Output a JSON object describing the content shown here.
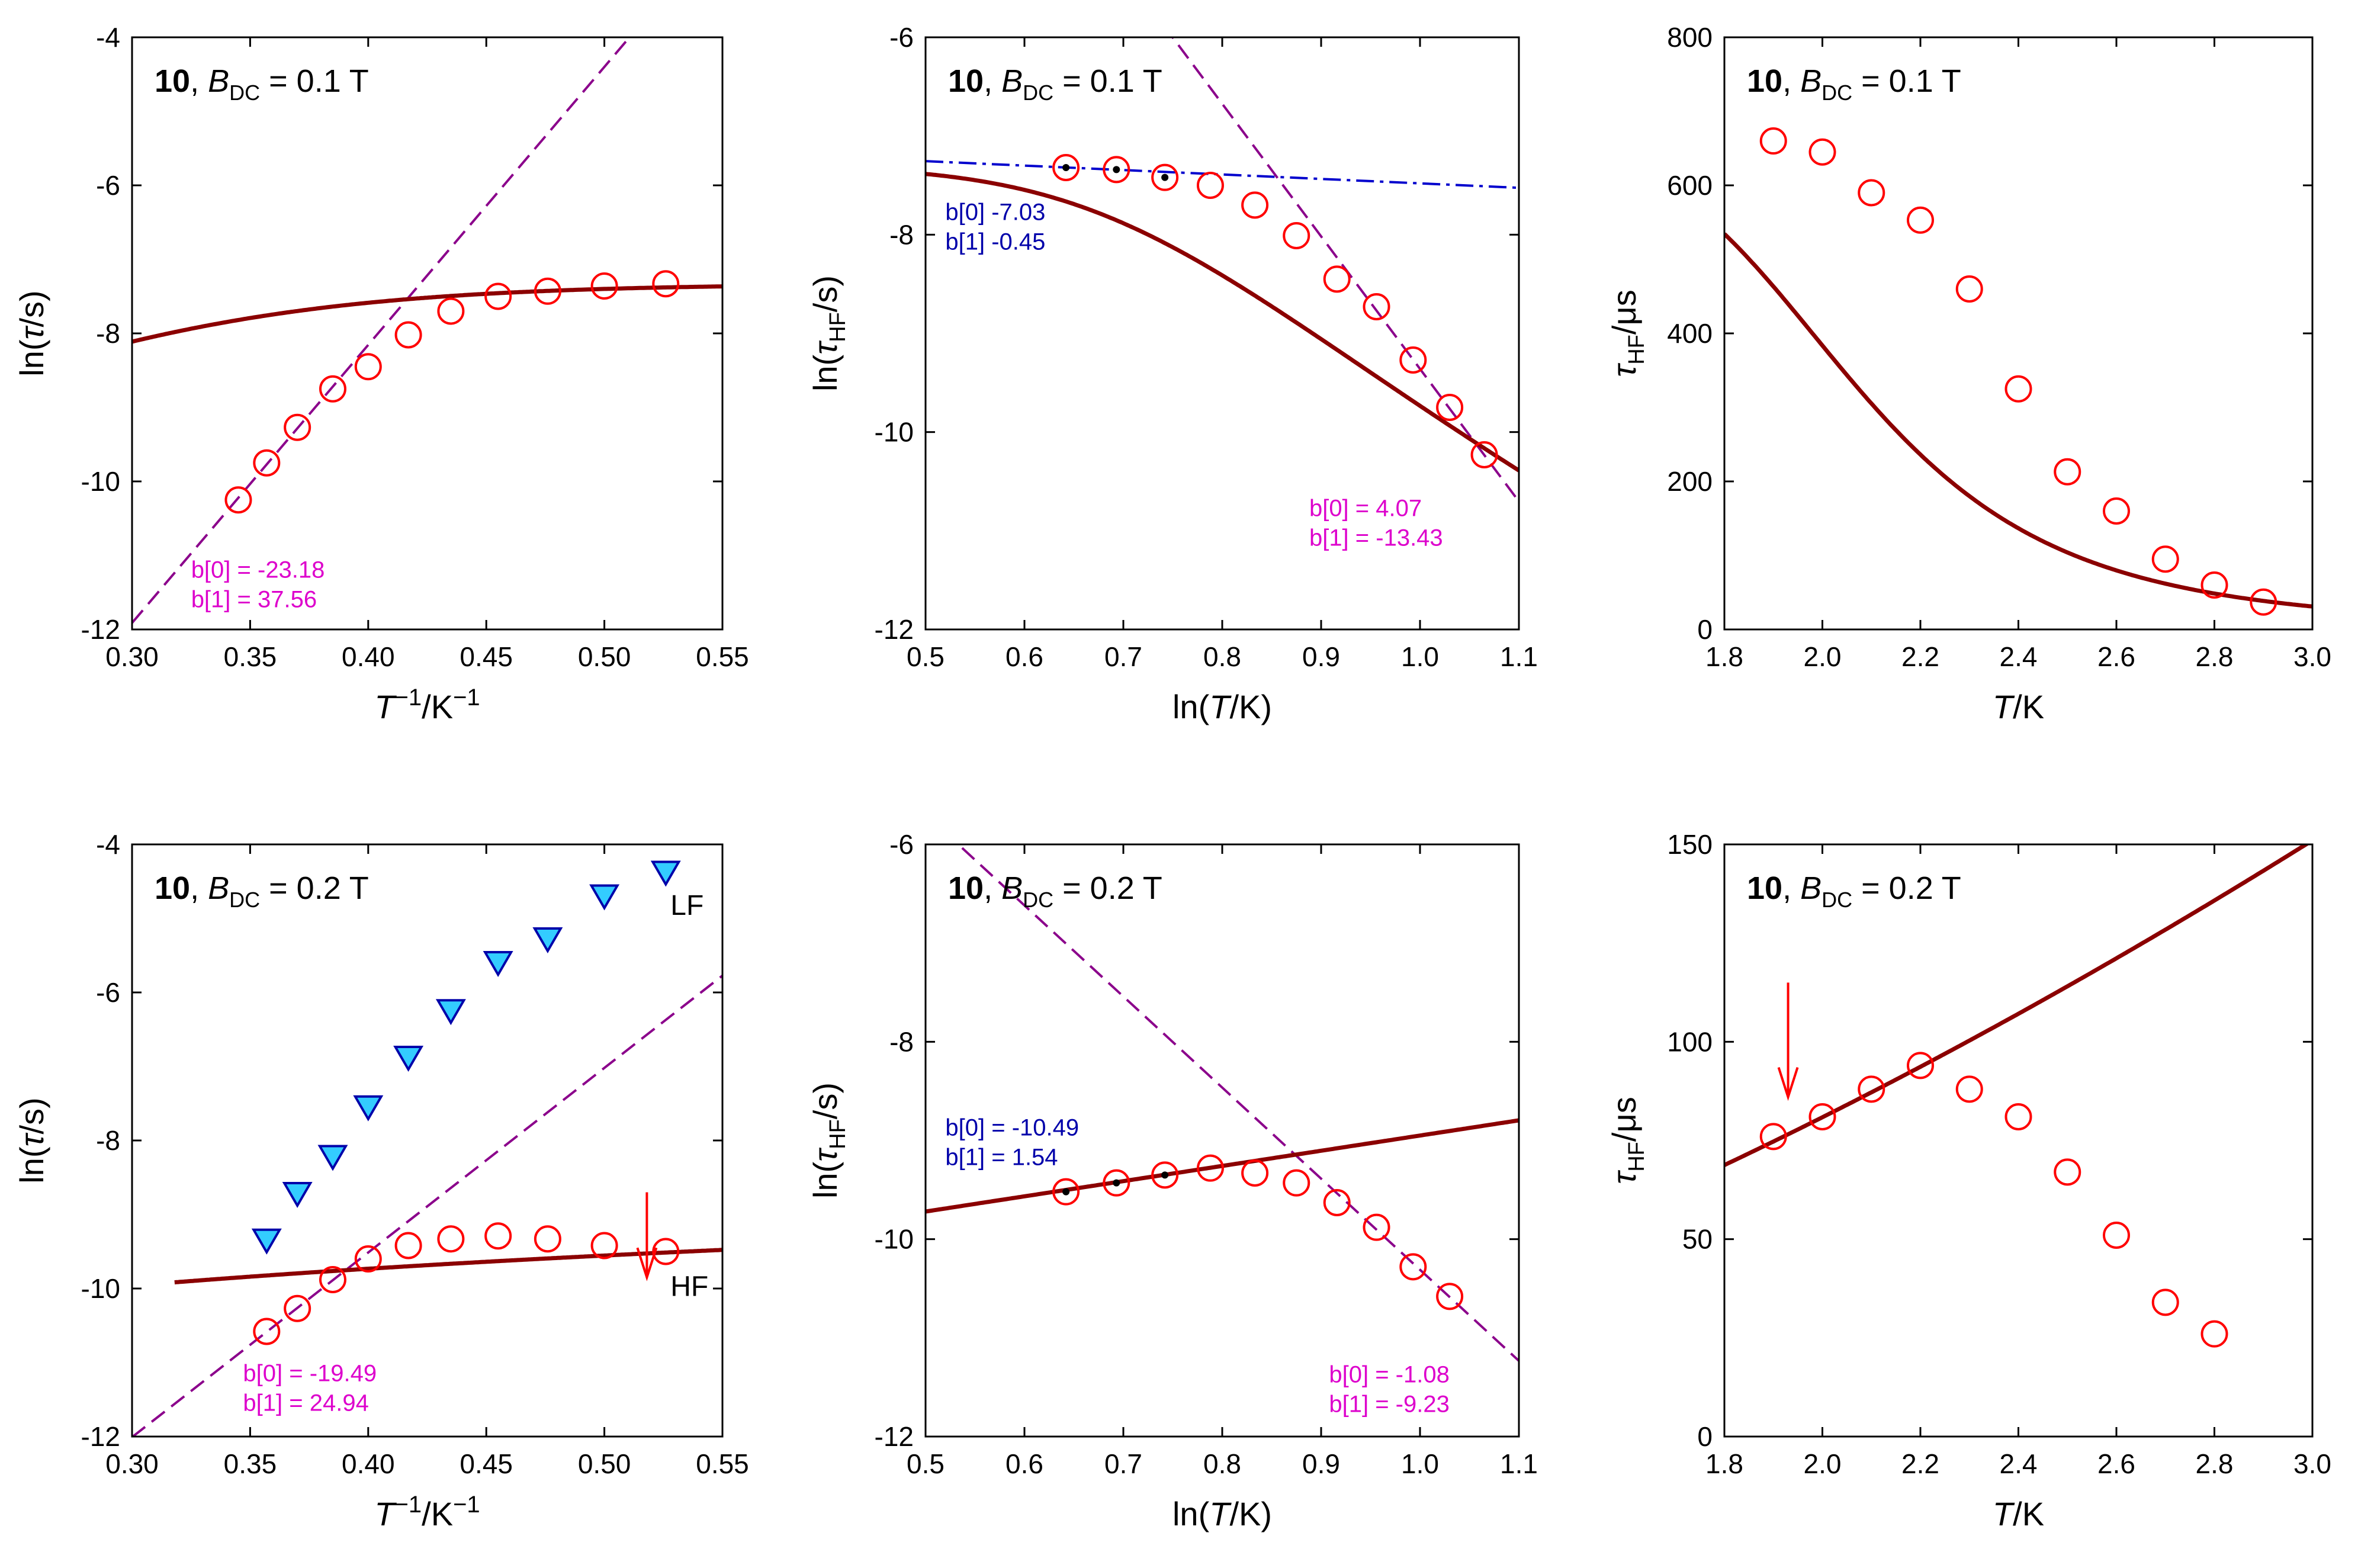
{
  "colors": {
    "data": "#ff0000",
    "fit": "#8b0000",
    "dashed": "#8b008b",
    "dashdot": "#0000cd",
    "annot_magenta": "#dd00cc",
    "annot_blue": "#0000aa",
    "lf_fill": "#33ccff",
    "lf_edge": "#0000aa",
    "arrow": "#ff0000"
  },
  "chart_data": [
    {
      "id": "p1",
      "type": "scatter",
      "title_num": "10",
      "title_mid": ", ",
      "title_b": "B",
      "title_sub": "DC",
      "title_rest": " = 0.1 T",
      "xlabel": "T⁻¹/K⁻¹",
      "ylabel": "ln(τ/s)",
      "xlim": [
        0.3,
        0.55
      ],
      "ylim": [
        -12,
        -4
      ],
      "xticks": [
        0.3,
        0.35,
        0.4,
        0.45,
        0.5,
        0.55
      ],
      "xtick_labels": [
        "0.30",
        "0.35",
        "0.40",
        "0.45",
        "0.50",
        "0.55"
      ],
      "yticks": [
        -12,
        -10,
        -8,
        -6,
        -4
      ],
      "ytick_labels": [
        "-12",
        "-10",
        "-8",
        "-6",
        "-4"
      ],
      "points": [
        [
          0.345,
          -10.25
        ],
        [
          0.357,
          -9.75
        ],
        [
          0.37,
          -9.27
        ],
        [
          0.385,
          -8.75
        ],
        [
          0.4,
          -8.45
        ],
        [
          0.417,
          -8.02
        ],
        [
          0.435,
          -7.7
        ],
        [
          0.455,
          -7.5
        ],
        [
          0.476,
          -7.43
        ],
        [
          0.5,
          -7.36
        ],
        [
          0.526,
          -7.33
        ]
      ],
      "fit_type": "sigmoid_inv",
      "fit_params": {
        "base": -7.33,
        "bmax": -3.3,
        "A": -23.18,
        "B": 37.56,
        "x0": 0.3,
        "x1": 0.55
      },
      "dashed": {
        "b0": -23.18,
        "b1": 37.56
      },
      "annotations": [
        {
          "lines": [
            "b[0] = -23.18",
            "b[1] = 37.56"
          ],
          "x": 0.325,
          "y": -11.3,
          "color": "magenta"
        }
      ]
    },
    {
      "id": "p2",
      "type": "scatter",
      "title_num": "10",
      "title_mid": ", ",
      "title_b": "B",
      "title_sub": "DC",
      "title_rest": " = 0.1 T",
      "xlabel": "ln(T/K)",
      "ylabel": "ln(τHF/s)",
      "xlim": [
        0.5,
        1.1
      ],
      "ylim": [
        -12,
        -6
      ],
      "xticks": [
        0.5,
        0.6,
        0.7,
        0.8,
        0.9,
        1.0,
        1.1
      ],
      "xtick_labels": [
        "0.5",
        "0.6",
        "0.7",
        "0.8",
        "0.9",
        "1.0",
        "1.1"
      ],
      "yticks": [
        -12,
        -10,
        -8,
        -6
      ],
      "ytick_labels": [
        "-12",
        "-10",
        "-8",
        "-6"
      ],
      "points": [
        [
          0.642,
          -7.32
        ],
        [
          0.693,
          -7.34
        ],
        [
          0.742,
          -7.42
        ],
        [
          0.788,
          -7.5
        ],
        [
          0.833,
          -7.7
        ],
        [
          0.875,
          -8.01
        ],
        [
          0.916,
          -8.45
        ],
        [
          0.956,
          -8.73
        ],
        [
          0.993,
          -9.27
        ],
        [
          1.03,
          -9.75
        ],
        [
          1.065,
          -10.23
        ]
      ],
      "fit_type": "tau_T",
      "fit_params": {
        "tqtm": -6.42,
        "C": -4.53,
        "n": 1.0,
        "U": 42.0,
        "t0": -15.5,
        "x0": 0.5,
        "x1": 1.1
      },
      "dashed": {
        "b0": 4.07,
        "b1": -13.43
      },
      "dashdot": {
        "b0": -7.03,
        "b1": -0.45
      },
      "annotations": [
        {
          "lines": [
            "b[0]  -7.03",
            "b[1]  -0.45"
          ],
          "x": 0.52,
          "y": -7.85,
          "color": "blue"
        },
        {
          "lines": [
            "b[0] = 4.07",
            "b[1] = -13.43"
          ],
          "x": 0.888,
          "y": -10.85,
          "color": "magenta"
        }
      ]
    },
    {
      "id": "p3",
      "type": "scatter",
      "title_num": "10",
      "title_mid": ", ",
      "title_b": "B",
      "title_sub": "DC",
      "title_rest": " = 0.1 T",
      "xlabel": "T/K",
      "ylabel": "τHF/μs",
      "xlim": [
        1.8,
        3.0
      ],
      "ylim": [
        0,
        800
      ],
      "xticks": [
        1.8,
        2.0,
        2.2,
        2.4,
        2.6,
        2.8,
        3.0
      ],
      "xtick_labels": [
        "1.8",
        "2.0",
        "2.2",
        "2.4",
        "2.6",
        "2.8",
        "3.0"
      ],
      "yticks": [
        0,
        200,
        400,
        600,
        800
      ],
      "ytick_labels": [
        "0",
        "200",
        "400",
        "600",
        "800"
      ],
      "points": [
        [
          1.9,
          660
        ],
        [
          2.0,
          645
        ],
        [
          2.1,
          590
        ],
        [
          2.2,
          553
        ],
        [
          2.3,
          460
        ],
        [
          2.4,
          325
        ],
        [
          2.5,
          213
        ],
        [
          2.6,
          160
        ],
        [
          2.7,
          95
        ],
        [
          2.8,
          60
        ],
        [
          2.9,
          37
        ]
      ],
      "fit_type": "exp_T",
      "fit_params": {
        "tqtm": -6.42,
        "C": -4.53,
        "U": 42.0,
        "t0": -15.5,
        "x0": 1.8,
        "x1": 3.0
      },
      "annotations": []
    },
    {
      "id": "p4",
      "type": "scatter",
      "title_num": "10",
      "title_mid": ", ",
      "title_b": "B",
      "title_sub": "DC",
      "title_rest": " = 0.2 T",
      "xlabel": "T⁻¹/K⁻¹",
      "ylabel": "ln(τ/s)",
      "xlim": [
        0.3,
        0.55
      ],
      "ylim": [
        -12,
        -4
      ],
      "xticks": [
        0.3,
        0.35,
        0.4,
        0.45,
        0.5,
        0.55
      ],
      "xtick_labels": [
        "0.30",
        "0.35",
        "0.40",
        "0.45",
        "0.50",
        "0.55"
      ],
      "yticks": [
        -12,
        -10,
        -8,
        -6,
        -4
      ],
      "ytick_labels": [
        "-12",
        "-10",
        "-8",
        "-6",
        "-4"
      ],
      "points": [
        [
          0.357,
          -10.58
        ],
        [
          0.37,
          -10.27
        ],
        [
          0.385,
          -9.88
        ],
        [
          0.4,
          -9.6
        ],
        [
          0.417,
          -9.42
        ],
        [
          0.435,
          -9.33
        ],
        [
          0.455,
          -9.29
        ],
        [
          0.476,
          -9.33
        ],
        [
          0.5,
          -9.42
        ],
        [
          0.526,
          -9.5
        ]
      ],
      "lf_points": [
        [
          0.357,
          -9.35
        ],
        [
          0.37,
          -8.72
        ],
        [
          0.385,
          -8.22
        ],
        [
          0.4,
          -7.55
        ],
        [
          0.417,
          -6.88
        ],
        [
          0.435,
          -6.25
        ],
        [
          0.455,
          -5.6
        ],
        [
          0.476,
          -5.28
        ],
        [
          0.5,
          -4.7
        ],
        [
          0.526,
          -4.38
        ]
      ],
      "fit_type": "sigmoid_inv2",
      "fit_params": {
        "x0": 0.318,
        "x1": 0.55
      },
      "dashed": {
        "b0": -19.49,
        "b1": 24.94
      },
      "annotations": [
        {
          "lines": [
            "b[0] = -19.49",
            "b[1] = 24.94"
          ],
          "x": 0.347,
          "y": -11.25,
          "color": "magenta"
        }
      ],
      "labels": [
        {
          "text": "LF",
          "x": 0.528,
          "y": -4.95
        },
        {
          "text": "HF",
          "x": 0.528,
          "y": -10.1
        }
      ],
      "arrow": {
        "x": 0.518,
        "y_from": -8.7,
        "y_to": -9.85
      }
    },
    {
      "id": "p5",
      "type": "scatter",
      "title_num": "10",
      "title_mid": ", ",
      "title_b": "B",
      "title_sub": "DC",
      "title_rest": " = 0.2 T",
      "xlabel": "ln(T/K)",
      "ylabel": "ln(τHF/s)",
      "xlim": [
        0.5,
        1.1
      ],
      "ylim": [
        -12,
        -6
      ],
      "xticks": [
        0.5,
        0.6,
        0.7,
        0.8,
        0.9,
        1.0,
        1.1
      ],
      "xtick_labels": [
        "0.5",
        "0.6",
        "0.7",
        "0.8",
        "0.9",
        "1.0",
        "1.1"
      ],
      "yticks": [
        -12,
        -10,
        -8,
        -6
      ],
      "ytick_labels": [
        "-12",
        "-10",
        "-8",
        "-6"
      ],
      "points": [
        [
          0.642,
          -9.52
        ],
        [
          0.693,
          -9.43
        ],
        [
          0.742,
          -9.35
        ],
        [
          0.788,
          -9.28
        ],
        [
          0.833,
          -9.33
        ],
        [
          0.875,
          -9.43
        ],
        [
          0.916,
          -9.63
        ],
        [
          0.956,
          -9.88
        ],
        [
          0.993,
          -10.28
        ],
        [
          1.03,
          -10.58
        ]
      ],
      "fit_type": "curve5",
      "fit_params": {
        "x0": 0.5,
        "x1": 1.1
      },
      "dashed": {
        "b0": -1.08,
        "b1": -9.23
      },
      "dashdot": {
        "b0": -10.49,
        "b1": 1.54
      },
      "annotations": [
        {
          "lines": [
            "b[0] = -10.49",
            "b[1] = 1.54"
          ],
          "x": 0.52,
          "y": -8.95,
          "color": "blue"
        },
        {
          "lines": [
            "b[0] = -1.08",
            "b[1] = -9.23"
          ],
          "x": 0.908,
          "y": -11.45,
          "color": "magenta"
        }
      ]
    },
    {
      "id": "p6",
      "type": "scatter",
      "title_num": "10",
      "title_mid": ", ",
      "title_b": "B",
      "title_sub": "DC",
      "title_rest": " = 0.2 T",
      "xlabel": "T/K",
      "ylabel": "τHF/μs",
      "xlim": [
        1.8,
        3.0
      ],
      "ylim": [
        0,
        150
      ],
      "xticks": [
        1.8,
        2.0,
        2.2,
        2.4,
        2.6,
        2.8,
        3.0
      ],
      "xtick_labels": [
        "1.8",
        "2.0",
        "2.2",
        "2.4",
        "2.6",
        "2.8",
        "3.0"
      ],
      "yticks": [
        0,
        50,
        100,
        150
      ],
      "ytick_labels": [
        "0",
        "50",
        "100",
        "150"
      ],
      "points": [
        [
          1.9,
          76
        ],
        [
          2.0,
          81
        ],
        [
          2.1,
          88
        ],
        [
          2.2,
          94
        ],
        [
          2.3,
          88
        ],
        [
          2.4,
          81
        ],
        [
          2.5,
          67
        ],
        [
          2.6,
          51
        ],
        [
          2.7,
          34
        ],
        [
          2.8,
          26
        ]
      ],
      "fit_type": "curve6",
      "fit_params": {
        "x0": 1.8,
        "x1": 3.0
      },
      "annotations": [],
      "arrow": {
        "x": 1.93,
        "y_from": 115,
        "y_to": 86
      }
    }
  ]
}
